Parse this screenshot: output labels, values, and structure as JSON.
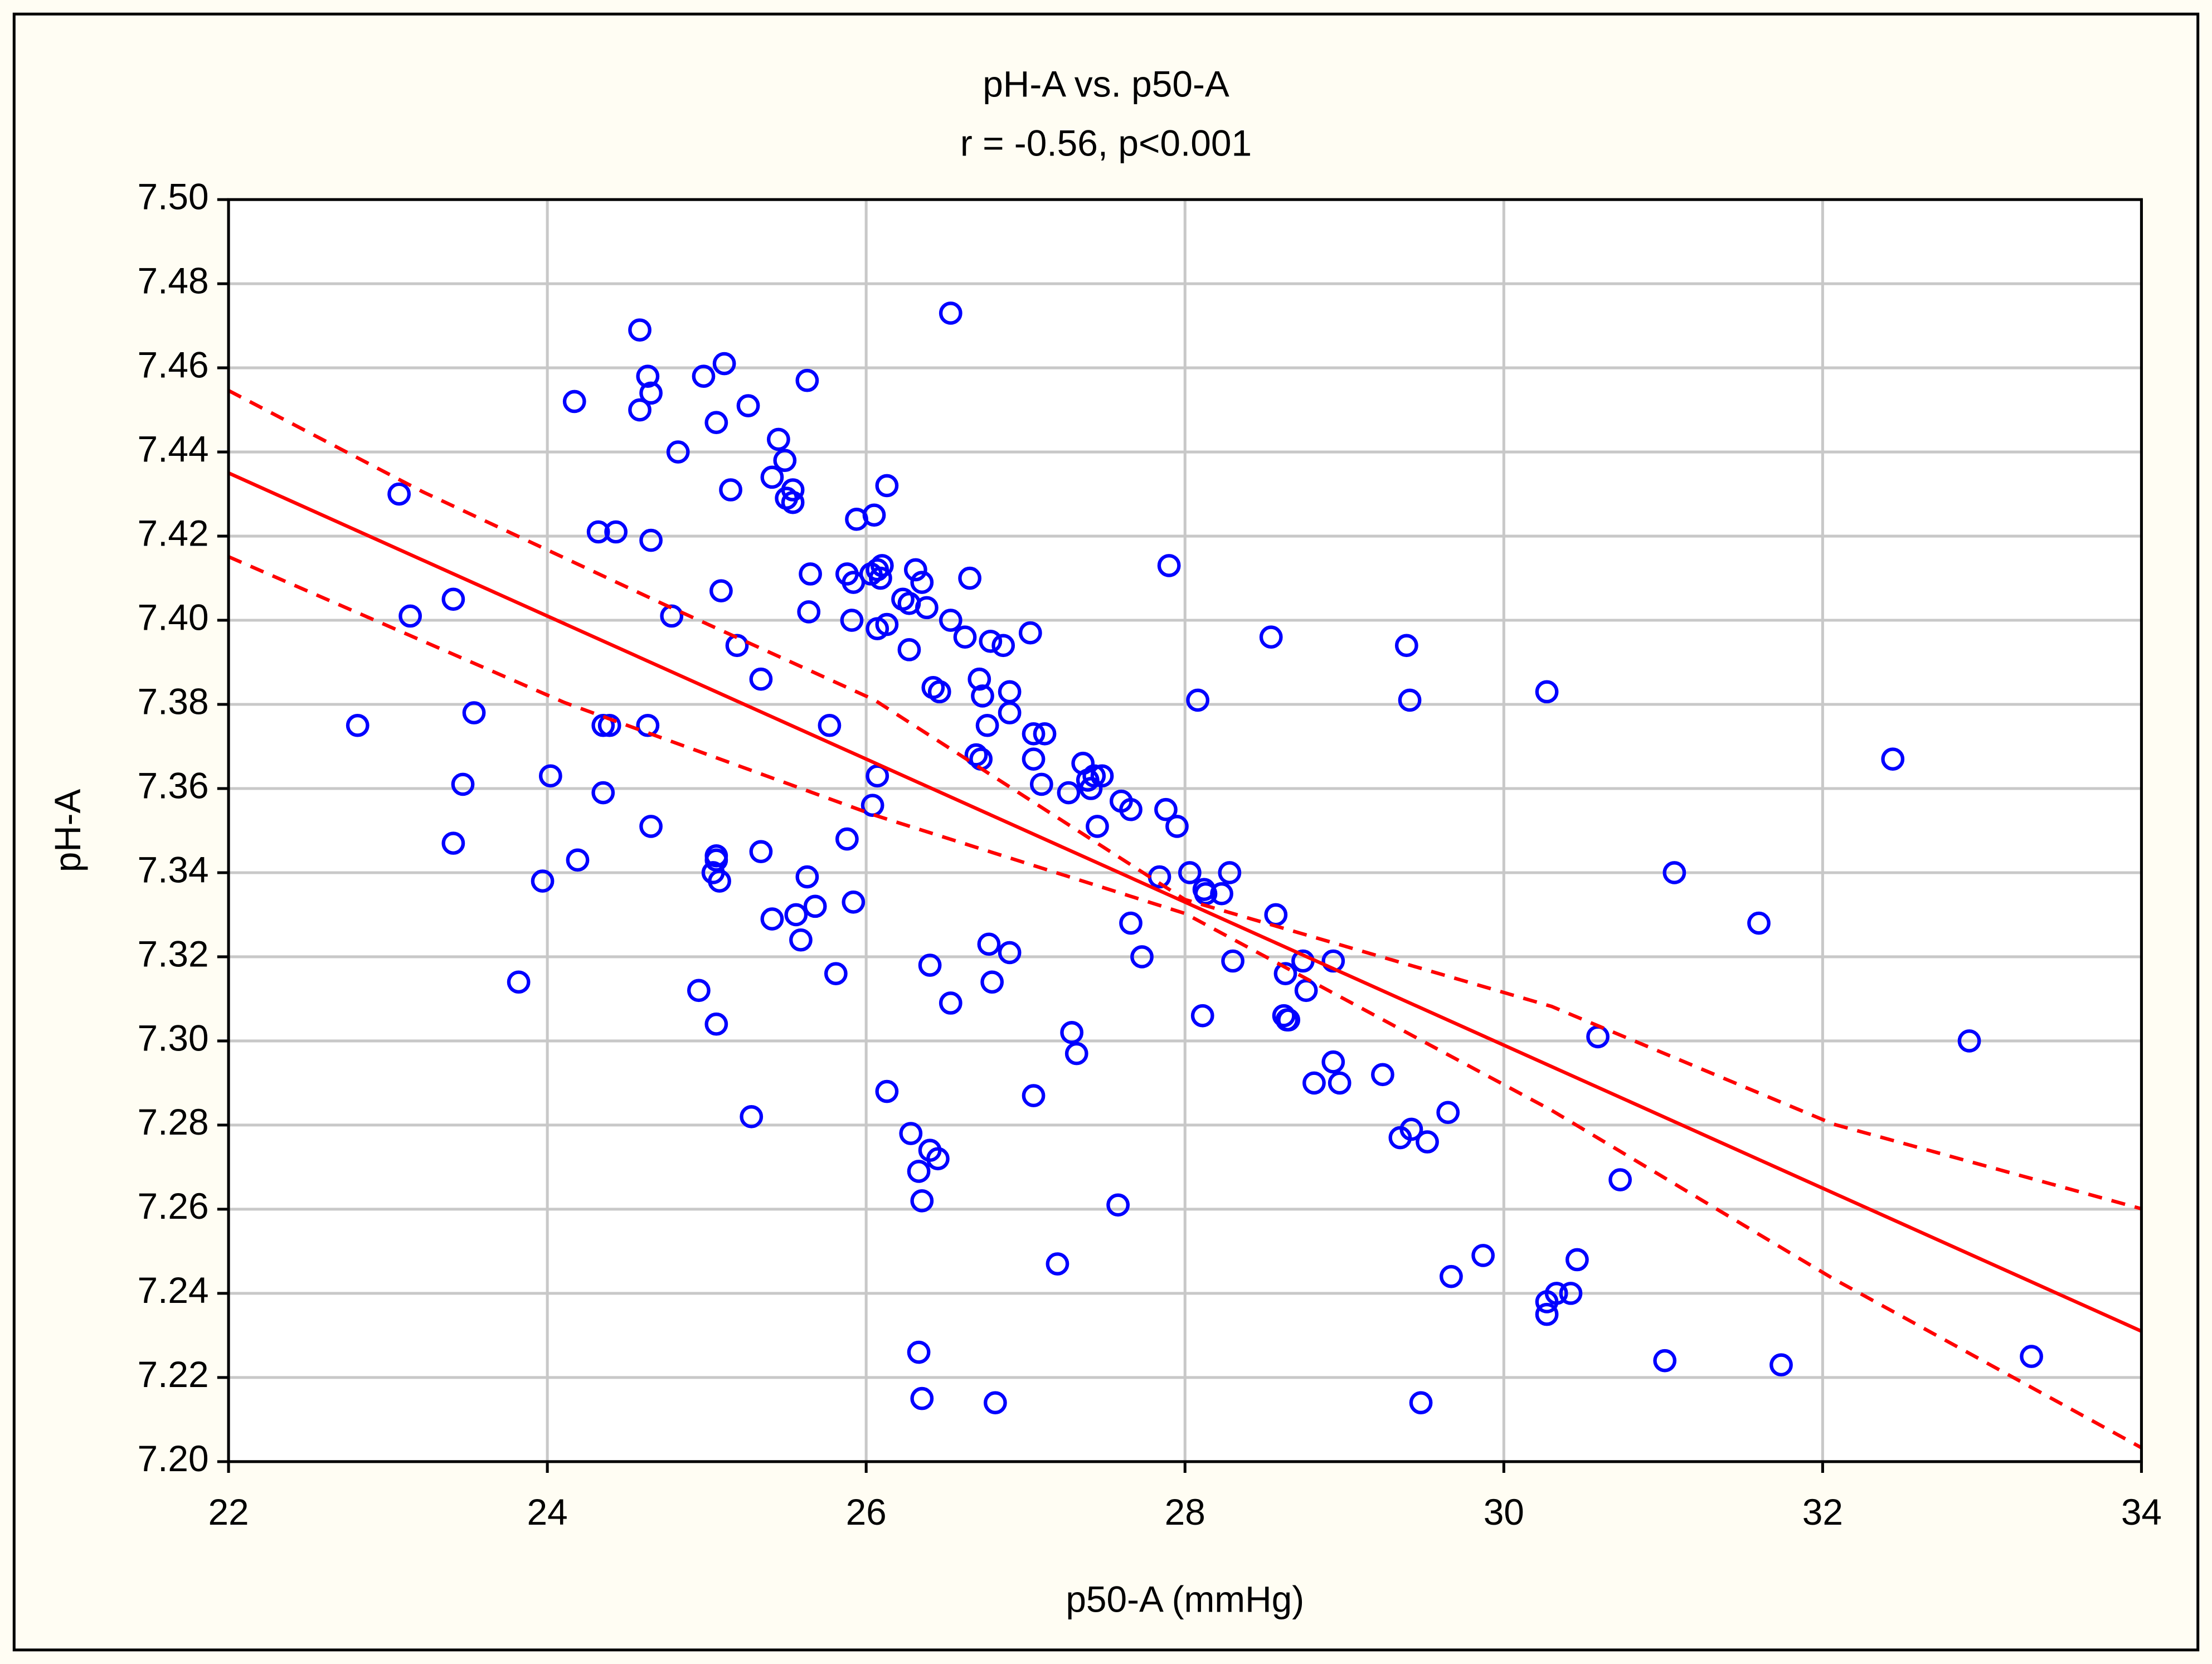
{
  "chart_data": {
    "type": "scatter",
    "title": "pH-A vs. p50-A",
    "subtitle": "r = -0.56, p<0.001",
    "xlabel": "p50-A (mmHg)",
    "ylabel": "pH-A",
    "xlim": [
      22,
      34
    ],
    "ylim": [
      7.2,
      7.5
    ],
    "xticks": [
      22,
      24,
      26,
      28,
      30,
      32,
      34
    ],
    "yticks": [
      {
        "value": 7.2,
        "label": "7.20"
      },
      {
        "value": 7.22,
        "label": "7.22"
      },
      {
        "value": 7.24,
        "label": "7.24"
      },
      {
        "value": 7.26,
        "label": "7.26"
      },
      {
        "value": 7.28,
        "label": "7.28"
      },
      {
        "value": 7.3,
        "label": "7.30"
      },
      {
        "value": 7.32,
        "label": "7.32"
      },
      {
        "value": 7.34,
        "label": "7.34"
      },
      {
        "value": 7.36,
        "label": "7.36"
      },
      {
        "value": 7.38,
        "label": "7.38"
      },
      {
        "value": 7.4,
        "label": "7.40"
      },
      {
        "value": 7.42,
        "label": "7.42"
      },
      {
        "value": 7.44,
        "label": "7.44"
      },
      {
        "value": 7.46,
        "label": "7.46"
      },
      {
        "value": 7.48,
        "label": "7.48"
      },
      {
        "value": 7.5,
        "label": "7.50"
      }
    ],
    "grid": true,
    "series": [
      {
        "style": "marker",
        "color": "#0000ff",
        "x": [
          22.81,
          23.07,
          23.14,
          23.41,
          23.54,
          23.47,
          23.41,
          23.82,
          23.97,
          24.02,
          24.17,
          24.19,
          24.32,
          24.43,
          24.35,
          24.35,
          24.39,
          24.58,
          24.63,
          24.65,
          24.58,
          24.65,
          24.63,
          24.65,
          24.82,
          24.78,
          24.95,
          24.98,
          25.06,
          25.11,
          25.15,
          25.09,
          25.19,
          25.26,
          25.06,
          25.04,
          25.08,
          25.06,
          25.06,
          25.28,
          25.34,
          25.34,
          25.41,
          25.45,
          25.49,
          25.5,
          25.54,
          25.54,
          25.41,
          25.56,
          25.59,
          25.68,
          25.63,
          25.63,
          25.65,
          25.64,
          25.77,
          25.81,
          25.88,
          25.88,
          25.92,
          25.94,
          25.91,
          25.92,
          26.03,
          26.05,
          26.07,
          26.1,
          26.09,
          26.13,
          26.07,
          26.13,
          26.07,
          26.04,
          26.13,
          26.23,
          26.27,
          26.31,
          26.35,
          26.38,
          26.27,
          26.28,
          26.33,
          26.35,
          26.4,
          26.45,
          26.33,
          26.35,
          26.42,
          26.46,
          26.4,
          26.53,
          26.53,
          26.62,
          26.65,
          26.71,
          26.73,
          26.69,
          26.72,
          26.78,
          26.86,
          26.76,
          26.9,
          26.9,
          26.77,
          26.9,
          26.79,
          26.53,
          26.81,
          27.03,
          27.05,
          27.12,
          27.05,
          27.1,
          27.05,
          27.2,
          27.27,
          27.36,
          27.39,
          27.41,
          27.43,
          27.48,
          27.45,
          27.29,
          27.32,
          27.58,
          27.6,
          27.66,
          27.66,
          27.73,
          27.84,
          27.88,
          27.95,
          27.9,
          28.03,
          28.08,
          28.12,
          28.13,
          28.23,
          28.28,
          28.11,
          28.3,
          28.54,
          28.57,
          28.63,
          28.62,
          28.64,
          28.65,
          28.74,
          28.76,
          28.93,
          28.81,
          28.93,
          28.97,
          29.24,
          29.35,
          29.42,
          29.52,
          29.65,
          29.39,
          29.41,
          29.48,
          29.67,
          29.87,
          30.27,
          30.27,
          30.27,
          30.33,
          30.42,
          30.46,
          30.59,
          30.73,
          31.01,
          31.07,
          31.6,
          31.74,
          32.44,
          32.92,
          33.31
        ],
        "values": [
          7.375,
          7.43,
          7.401,
          7.405,
          7.378,
          7.361,
          7.347,
          7.314,
          7.338,
          7.363,
          7.452,
          7.343,
          7.421,
          7.421,
          7.359,
          7.375,
          7.375,
          7.469,
          7.458,
          7.454,
          7.45,
          7.419,
          7.375,
          7.351,
          7.44,
          7.401,
          7.312,
          7.458,
          7.447,
          7.461,
          7.431,
          7.407,
          7.394,
          7.451,
          7.343,
          7.34,
          7.338,
          7.344,
          7.304,
          7.282,
          7.386,
          7.345,
          7.434,
          7.443,
          7.438,
          7.429,
          7.431,
          7.428,
          7.329,
          7.33,
          7.324,
          7.332,
          7.339,
          7.457,
          7.411,
          7.402,
          7.375,
          7.316,
          7.348,
          7.411,
          7.409,
          7.424,
          7.4,
          7.333,
          7.411,
          7.425,
          7.412,
          7.413,
          7.41,
          7.432,
          7.398,
          7.399,
          7.363,
          7.356,
          7.288,
          7.405,
          7.404,
          7.412,
          7.409,
          7.403,
          7.393,
          7.278,
          7.269,
          7.262,
          7.274,
          7.272,
          7.226,
          7.215,
          7.384,
          7.383,
          7.318,
          7.4,
          7.473,
          7.396,
          7.41,
          7.386,
          7.382,
          7.368,
          7.367,
          7.395,
          7.394,
          7.375,
          7.383,
          7.378,
          7.323,
          7.321,
          7.314,
          7.309,
          7.214,
          7.397,
          7.373,
          7.373,
          7.367,
          7.361,
          7.287,
          7.247,
          7.359,
          7.366,
          7.362,
          7.36,
          7.363,
          7.363,
          7.351,
          7.302,
          7.297,
          7.261,
          7.357,
          7.355,
          7.328,
          7.32,
          7.339,
          7.355,
          7.351,
          7.413,
          7.34,
          7.381,
          7.336,
          7.335,
          7.335,
          7.34,
          7.306,
          7.319,
          7.396,
          7.33,
          7.316,
          7.306,
          7.305,
          7.305,
          7.319,
          7.312,
          7.319,
          7.29,
          7.295,
          7.29,
          7.292,
          7.277,
          7.279,
          7.276,
          7.283,
          7.394,
          7.381,
          7.214,
          7.244,
          7.249,
          7.383,
          7.238,
          7.235,
          7.24,
          7.24,
          7.248,
          7.301,
          7.267,
          7.224,
          7.34,
          7.328,
          7.223,
          7.367,
          7.3,
          7.225
        ]
      },
      {
        "style": "line",
        "color": "#ff0000",
        "x": [
          22,
          34
        ],
        "values": [
          7.435,
          7.231
        ]
      },
      {
        "style": "dashed",
        "color": "#ff0000",
        "x": [
          22,
          23.22,
          24.73,
          26.05,
          28.0,
          30.3,
          32.07,
          34
        ],
        "values": [
          7.4546,
          7.4305,
          7.4038,
          7.3811,
          7.3336,
          7.3082,
          7.2802,
          7.2601
        ]
      },
      {
        "style": "dashed",
        "color": "#ff0000",
        "x": [
          22,
          24.11,
          26.05,
          28.0,
          30.3,
          32.07,
          34
        ],
        "values": [
          7.4151,
          7.3804,
          7.3537,
          7.3303,
          7.2835,
          7.2434,
          7.2033
        ]
      }
    ]
  }
}
